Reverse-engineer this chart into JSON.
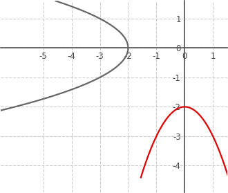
{
  "xlim": [
    -6.5,
    1.5
  ],
  "ylim": [
    -4.9,
    1.6
  ],
  "xticks": [
    -5,
    -4,
    -3,
    -2,
    -1,
    0,
    1
  ],
  "yticks": [
    -4,
    -3,
    -2,
    -1,
    0,
    1
  ],
  "grid_color": "#cccccc",
  "grid_linestyle": "--",
  "axis_color": "#555555",
  "parabola_color": "#dd0000",
  "sideways_color": "#666666",
  "figsize": [
    3.3,
    2.79
  ],
  "dpi": 100,
  "tick_fontsize": 8.5,
  "tick_color": "#444444",
  "parabola_xmin": -1.55,
  "parabola_xmax": 1.55
}
